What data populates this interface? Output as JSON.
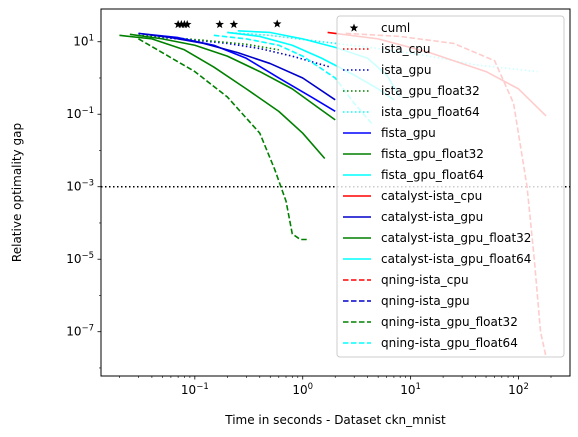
{
  "chart_data": {
    "type": "line",
    "xlabel": "Time in seconds - Dataset ckn_mnist",
    "ylabel": "Relative optimality gap",
    "xscale": "log",
    "yscale": "log",
    "xlim": [
      0.0135,
      300
    ],
    "ylim": [
      6e-09,
      80
    ],
    "grid": false,
    "legend_position": "right",
    "x_ticks": [
      {
        "value": 0.1,
        "base": "10",
        "exp": "−1"
      },
      {
        "value": 1,
        "base": "10",
        "exp": "0"
      },
      {
        "value": 10,
        "base": "10",
        "exp": "1"
      },
      {
        "value": 100,
        "base": "10",
        "exp": "2"
      }
    ],
    "y_ticks": [
      {
        "value": 1e-07,
        "base": "10",
        "exp": "−7"
      },
      {
        "value": 1e-05,
        "base": "10",
        "exp": "−5"
      },
      {
        "value": 0.001,
        "base": "10",
        "exp": "−3"
      },
      {
        "value": 0.1,
        "base": "10",
        "exp": "−1"
      },
      {
        "value": 10,
        "base": "10",
        "exp": "1"
      }
    ],
    "reference_line": {
      "y": 0.001,
      "color": "#000000",
      "style": "dotted"
    },
    "series": [
      {
        "name": "cuml",
        "color": "#000000",
        "style": "none",
        "marker": "star",
        "points": [
          [
            0.07,
            30
          ],
          [
            0.075,
            30
          ],
          [
            0.08,
            30
          ],
          [
            0.085,
            30
          ],
          [
            0.17,
            30
          ],
          [
            0.23,
            30
          ],
          [
            0.58,
            31
          ]
        ]
      },
      {
        "name": "ista_cpu",
        "color": "#ff0000",
        "style": "dotted",
        "marker": "none",
        "points": []
      },
      {
        "name": "ista_gpu",
        "color": "#0000cc",
        "style": "dotted",
        "marker": "none",
        "points": [
          [
            0.03,
            15
          ],
          [
            0.05,
            13
          ],
          [
            0.1,
            11
          ],
          [
            0.2,
            9
          ],
          [
            0.4,
            6.5
          ],
          [
            0.8,
            4
          ],
          [
            1.8,
            2
          ]
        ]
      },
      {
        "name": "ista_gpu_float32",
        "color": "#008000",
        "style": "dotted",
        "marker": "none",
        "points": [
          [
            0.03,
            15
          ],
          [
            0.06,
            13
          ],
          [
            0.12,
            11
          ],
          [
            0.3,
            8.5
          ],
          [
            0.6,
            6
          ]
        ]
      },
      {
        "name": "ista_gpu_float64",
        "color": "#00ffff",
        "style": "dotted",
        "marker": "none",
        "points": [
          [
            0.2,
            18
          ],
          [
            0.5,
            15
          ],
          [
            1.5,
            10
          ],
          [
            5,
            6.5
          ],
          [
            15,
            4
          ],
          [
            40,
            2.3
          ],
          [
            150,
            1.5
          ]
        ]
      },
      {
        "name": "fista_gpu",
        "color": "#0000ff",
        "style": "solid",
        "marker": "none",
        "points": [
          [
            0.03,
            17
          ],
          [
            0.07,
            13
          ],
          [
            0.15,
            8
          ],
          [
            0.3,
            3.5
          ],
          [
            0.6,
            1
          ],
          [
            1.2,
            0.3
          ],
          [
            2.0,
            0.12
          ]
        ]
      },
      {
        "name": "fista_gpu_float32",
        "color": "#008000",
        "style": "solid",
        "marker": "none",
        "points": [
          [
            0.02,
            15
          ],
          [
            0.04,
            12
          ],
          [
            0.08,
            6
          ],
          [
            0.15,
            2
          ],
          [
            0.3,
            0.5
          ],
          [
            0.6,
            0.12
          ],
          [
            1.0,
            0.03
          ],
          [
            1.6,
            0.006
          ]
        ]
      },
      {
        "name": "fista_gpu_float64",
        "color": "#00ffff",
        "style": "solid",
        "marker": "none",
        "points": [
          [
            0.2,
            18
          ],
          [
            0.4,
            14
          ],
          [
            0.8,
            8
          ],
          [
            1.5,
            3.5
          ],
          [
            3,
            1.2
          ],
          [
            5,
            0.5
          ],
          [
            7,
            0.25
          ]
        ]
      },
      {
        "name": "catalyst-ista_cpu",
        "color": "#ff0000",
        "style": "solid",
        "marker": "none",
        "points": [
          [
            1.7,
            18
          ],
          [
            5,
            12
          ],
          [
            15,
            5
          ],
          [
            50,
            1.5
          ],
          [
            100,
            0.5
          ],
          [
            180,
            0.09
          ]
        ]
      },
      {
        "name": "catalyst-ista_gpu",
        "color": "#0000cc",
        "style": "solid",
        "marker": "none",
        "points": [
          [
            0.03,
            17
          ],
          [
            0.06,
            13
          ],
          [
            0.12,
            9
          ],
          [
            0.25,
            5
          ],
          [
            0.5,
            2.5
          ],
          [
            1,
            1
          ],
          [
            2.0,
            0.25
          ]
        ]
      },
      {
        "name": "catalyst-ista_gpu_float32",
        "color": "#008000",
        "style": "solid",
        "marker": "none",
        "points": [
          [
            0.025,
            16
          ],
          [
            0.05,
            12
          ],
          [
            0.1,
            8
          ],
          [
            0.2,
            4
          ],
          [
            0.4,
            1.5
          ],
          [
            0.8,
            0.5
          ],
          [
            1.4,
            0.15
          ],
          [
            2.0,
            0.07
          ]
        ]
      },
      {
        "name": "catalyst-ista_gpu_float64",
        "color": "#00ffff",
        "style": "solid",
        "marker": "none",
        "points": [
          [
            0.25,
            20
          ],
          [
            0.5,
            18
          ],
          [
            1,
            12
          ],
          [
            2,
            7
          ],
          [
            4,
            3.5
          ],
          [
            6,
            1.2
          ],
          [
            8,
            0.3
          ]
        ]
      },
      {
        "name": "qning-ista_cpu",
        "color": "#ff0000",
        "style": "dashed",
        "marker": "none",
        "points": [
          [
            2.5,
            17
          ],
          [
            8,
            14
          ],
          [
            25,
            9
          ],
          [
            60,
            3
          ],
          [
            90,
            0.2
          ],
          [
            120,
            0.001
          ],
          [
            140,
            1e-05
          ],
          [
            160,
            1e-07
          ],
          [
            180,
            2e-08
          ]
        ]
      },
      {
        "name": "qning-ista_gpu",
        "color": "#0000cc",
        "style": "dashed",
        "marker": "none",
        "points": []
      },
      {
        "name": "qning-ista_gpu_float32",
        "color": "#008000",
        "style": "dashed",
        "marker": "none",
        "points": [
          [
            0.03,
            12
          ],
          [
            0.05,
            5
          ],
          [
            0.1,
            1.5
          ],
          [
            0.2,
            0.3
          ],
          [
            0.4,
            0.03
          ],
          [
            0.55,
            0.003
          ],
          [
            0.7,
            0.0004
          ],
          [
            0.8,
            5e-05
          ],
          [
            0.95,
            3.5e-05
          ],
          [
            1.15,
            3.5e-05
          ]
        ]
      },
      {
        "name": "qning-ista_gpu_float64",
        "color": "#00ffff",
        "style": "dashed",
        "marker": "none",
        "points": [
          [
            0.15,
            15
          ],
          [
            0.3,
            12
          ],
          [
            0.6,
            8
          ],
          [
            1,
            4
          ],
          [
            2,
            1
          ],
          [
            3,
            0.2
          ],
          [
            4.5,
            0.05
          ]
        ]
      }
    ]
  }
}
